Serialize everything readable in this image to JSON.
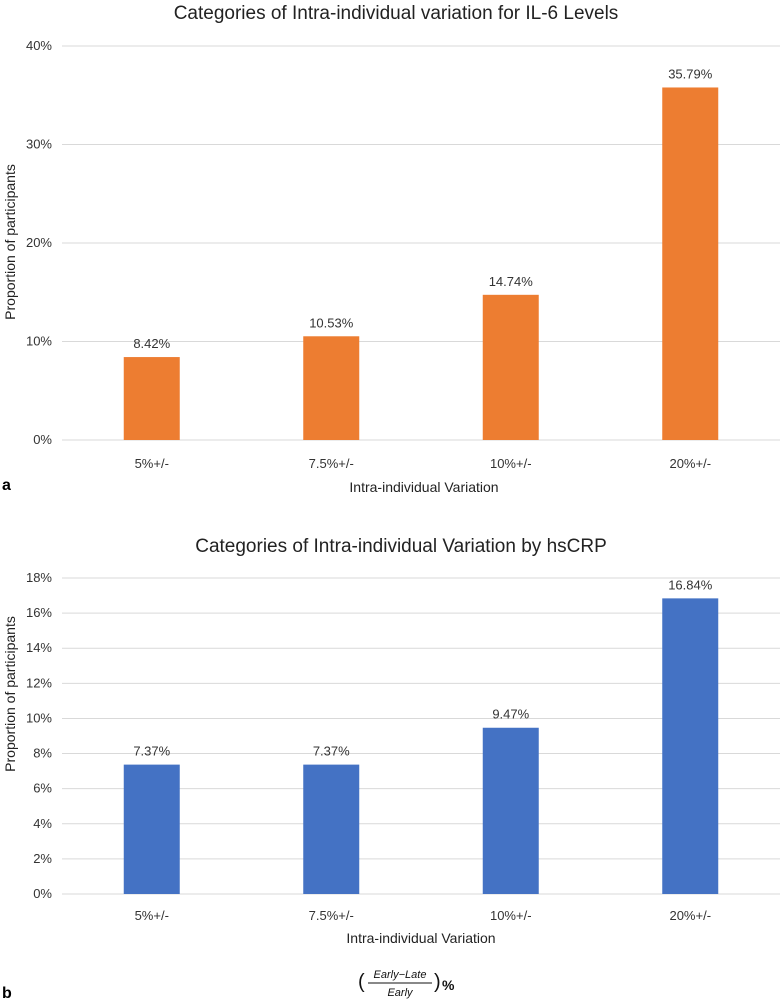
{
  "chart_data": [
    {
      "panel": "a",
      "type": "bar",
      "title": "Categories of Intra-individual variation for IL-6 Levels",
      "xlabel": "Intra-individual Variation",
      "ylabel": "Proportion of participants",
      "categories": [
        "5%+/-",
        "7.5%+/-",
        "10%+/-",
        "20%+/-"
      ],
      "values": [
        8.42,
        10.53,
        14.74,
        35.79
      ],
      "value_labels": [
        "8.42%",
        "10.53%",
        "14.74%",
        "35.79%"
      ],
      "ylim": [
        0,
        40
      ],
      "yticks": [
        0,
        10,
        20,
        30,
        40
      ],
      "ytick_labels": [
        "0%",
        "10%",
        "20%",
        "30%",
        "40%"
      ],
      "grid": true,
      "color": "#ed7d31"
    },
    {
      "panel": "b",
      "type": "bar",
      "title": "Categories of Intra-individual Variation by hsCRP",
      "xlabel": "Intra-individual Variation",
      "ylabel": "Proportion of participants",
      "categories": [
        "5%+/-",
        "7.5%+/-",
        "10%+/-",
        "20%+/-"
      ],
      "values": [
        7.37,
        7.37,
        9.47,
        16.84
      ],
      "value_labels": [
        "7.37%",
        "7.37%",
        "9.47%",
        "16.84%"
      ],
      "ylim": [
        0,
        18
      ],
      "yticks": [
        0,
        2,
        4,
        6,
        8,
        10,
        12,
        14,
        16,
        18
      ],
      "ytick_labels": [
        "0%",
        "2%",
        "4%",
        "6%",
        "8%",
        "10%",
        "12%",
        "14%",
        "16%",
        "18%"
      ],
      "grid": true,
      "color": "#4472c4"
    }
  ],
  "formula": {
    "open_paren": "(",
    "numerator": "Early−Late",
    "denominator": "Early",
    "close_paren": ")",
    "suffix": "%"
  }
}
